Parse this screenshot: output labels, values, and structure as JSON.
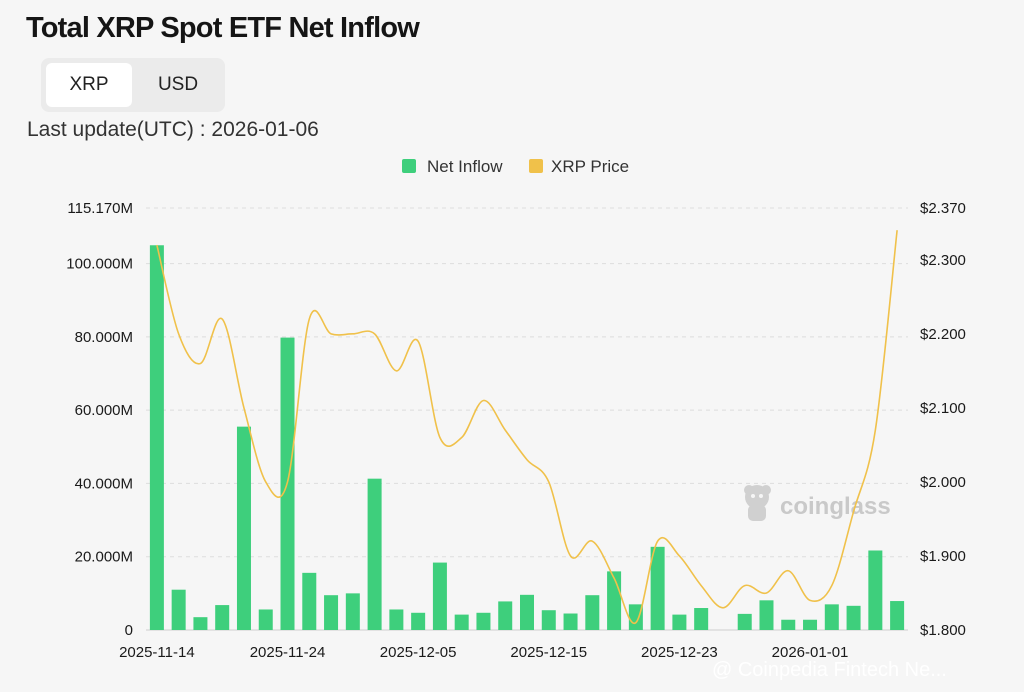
{
  "title": "Total XRP Spot ETF Net Inflow",
  "toggle": {
    "options": [
      "XRP",
      "USD"
    ],
    "selected": "XRP"
  },
  "last_update": "Last update(UTC) : 2026-01-06",
  "watermark": "coinglass",
  "credit": "@ Coinpedia Fintech Ne...",
  "colors": {
    "bar": "#3ecf7c",
    "line": "#f0c14a",
    "grid": "#dddddd",
    "background": "#f6f6f6"
  },
  "chart_data": {
    "type": "bar",
    "legend": [
      "Net Inflow",
      "XRP Price"
    ],
    "legend_position": "top-center",
    "grid": true,
    "y_left": {
      "ticks": [
        0,
        20000000,
        40000000,
        60000000,
        80000000,
        100000000,
        115170000
      ],
      "tick_labels": [
        "0",
        "20.000M",
        "40.000M",
        "60.000M",
        "80.000M",
        "100.000M",
        "115.170M"
      ],
      "range": [
        0,
        115170000
      ]
    },
    "y_right": {
      "ticks": [
        1.8,
        1.9,
        2.0,
        2.1,
        2.2,
        2.3,
        2.37
      ],
      "tick_labels": [
        "$1.800",
        "$1.900",
        "$2.000",
        "$2.100",
        "$2.200",
        "$2.300",
        "$2.370"
      ],
      "range": [
        1.8,
        2.37
      ]
    },
    "x_tick_labels": [
      "2025-11-14",
      "2025-11-24",
      "2025-12-05",
      "2025-12-15",
      "2025-12-23",
      "2026-01-01"
    ],
    "x_tick_index": [
      0,
      6,
      12,
      18,
      24,
      30
    ],
    "series": [
      {
        "name": "Net Inflow",
        "type": "bar",
        "values": [
          105000000,
          11000000,
          3500000,
          6800000,
          55500000,
          5600000,
          79800000,
          15600000,
          9500000,
          10000000,
          41300000,
          5600000,
          4700000,
          18400000,
          4200000,
          4700000,
          7800000,
          9600000,
          5400000,
          4500000,
          9500000,
          16000000,
          7000000,
          22700000,
          4200000,
          6000000,
          0,
          4400000,
          8100000,
          2800000,
          2800000,
          7000000,
          6600000,
          21700000,
          7900000
        ]
      },
      {
        "name": "XRP Price",
        "type": "line",
        "values": [
          2.32,
          2.2,
          2.16,
          2.22,
          2.1,
          2.0,
          2.0,
          2.22,
          2.2,
          2.2,
          2.2,
          2.15,
          2.19,
          2.06,
          2.06,
          2.11,
          2.07,
          2.03,
          2.0,
          1.9,
          1.92,
          1.87,
          1.81,
          1.92,
          1.9,
          1.86,
          1.83,
          1.86,
          1.85,
          1.88,
          1.84,
          1.86,
          1.96,
          2.07,
          2.34
        ]
      }
    ]
  }
}
